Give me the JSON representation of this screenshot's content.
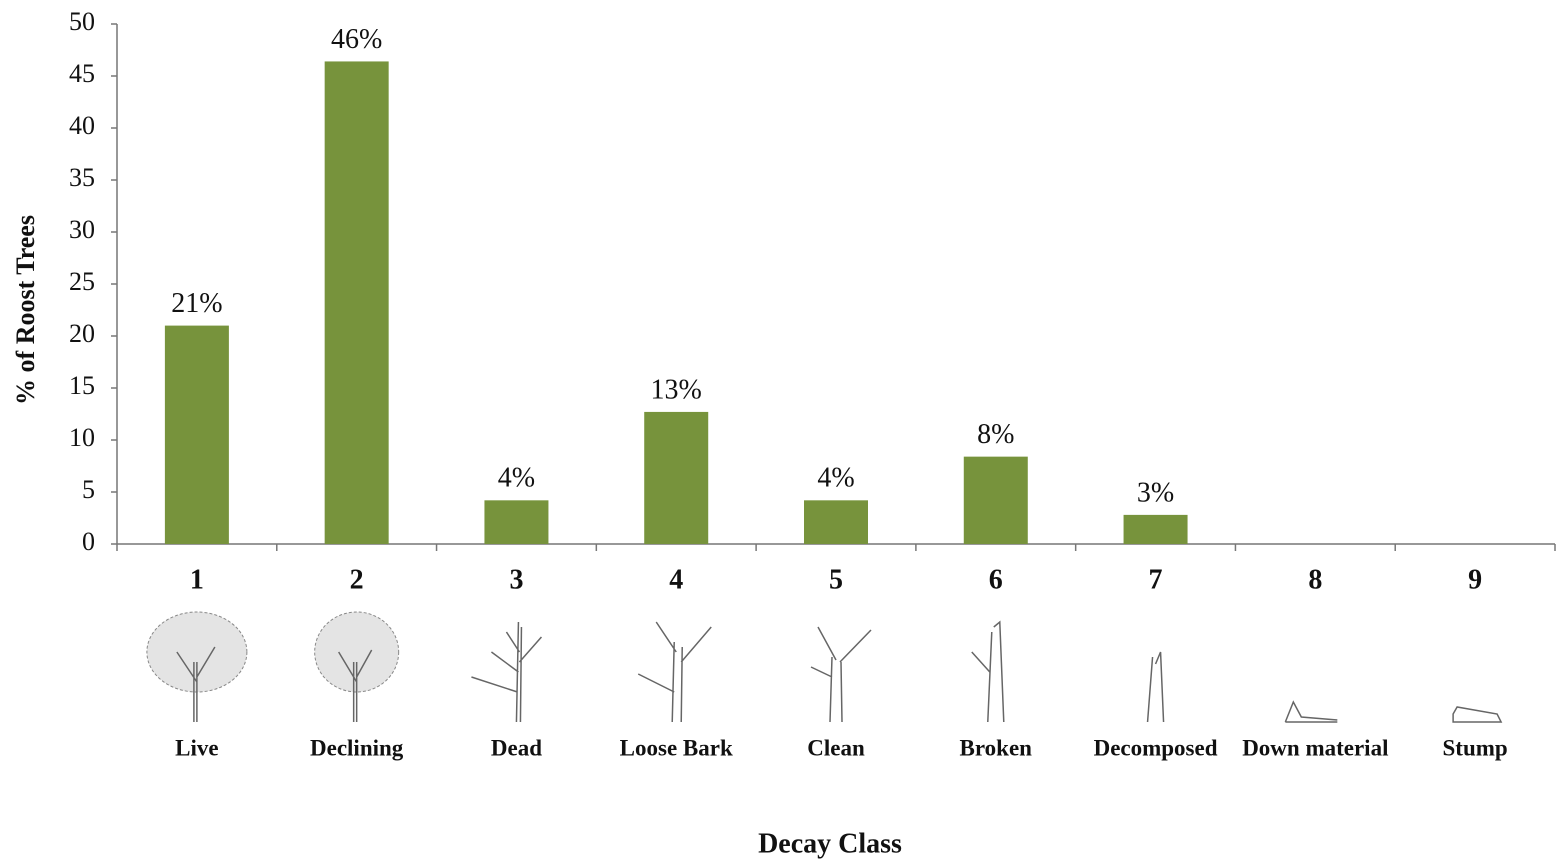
{
  "chart_data": {
    "type": "bar",
    "x_label": "Decay Class",
    "y_label": "% of Roost Trees",
    "categories": [
      "1",
      "2",
      "3",
      "4",
      "5",
      "6",
      "7",
      "8",
      "9"
    ],
    "class_names": [
      "Live",
      "Declining",
      "Dead",
      "Loose Bark",
      "Clean",
      "Broken",
      "Decomposed",
      "Down material",
      "Stump"
    ],
    "values": [
      21,
      46.4,
      4.2,
      12.7,
      4.2,
      8.4,
      2.8,
      0,
      0
    ],
    "value_labels": [
      "21%",
      "46%",
      "4%",
      "13%",
      "4%",
      "8%",
      "3%",
      null,
      null
    ],
    "color": "#77933c",
    "ylim": [
      0,
      50
    ],
    "yticks": [
      0,
      5,
      10,
      15,
      20,
      25,
      30,
      35,
      40,
      45,
      50
    ],
    "grid": false
  }
}
